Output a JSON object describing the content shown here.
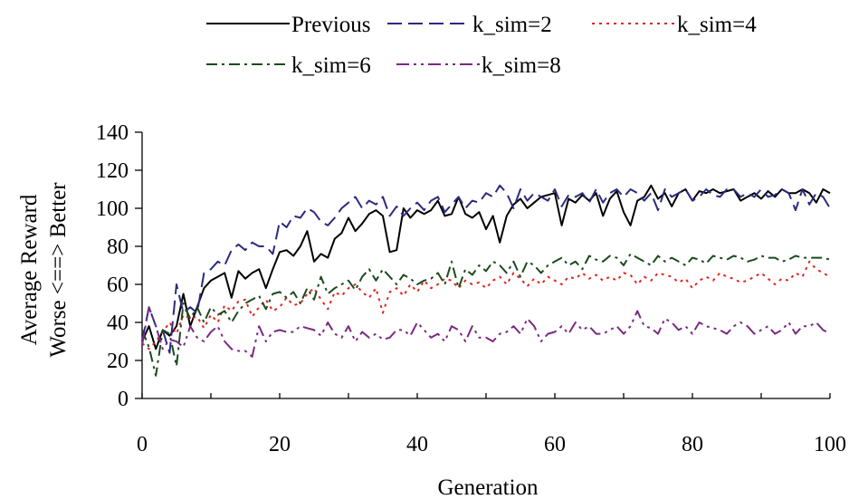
{
  "chart_data": {
    "type": "line",
    "title": "",
    "xlabel": "Generation",
    "ylabel": [
      "Average Reward",
      "Worse <==> Better"
    ],
    "xlim": [
      0,
      100
    ],
    "ylim": [
      0,
      140
    ],
    "xticks": [
      0,
      20,
      40,
      60,
      80,
      100
    ],
    "yticks": [
      0,
      20,
      40,
      60,
      80,
      100,
      120,
      140
    ],
    "grid": false,
    "legend_position": "top",
    "series": [
      {
        "name": "Previous",
        "color": "#000000",
        "dash": "solid",
        "x": [
          0,
          1,
          2,
          3,
          4,
          5,
          6,
          7,
          8,
          9,
          10,
          11,
          12,
          13,
          14,
          15,
          16,
          17,
          18,
          19,
          20,
          21,
          22,
          23,
          24,
          25,
          26,
          27,
          28,
          29,
          30,
          31,
          32,
          33,
          34,
          35,
          36,
          37,
          38,
          39,
          40,
          41,
          42,
          43,
          44,
          45,
          46,
          47,
          48,
          49,
          50,
          51,
          52,
          53,
          54,
          55,
          56,
          57,
          58,
          59,
          60,
          61,
          62,
          63,
          64,
          65,
          66,
          67,
          68,
          69,
          70,
          71,
          72,
          73,
          74,
          75,
          76,
          77,
          78,
          79,
          80,
          81,
          82,
          83,
          84,
          85,
          86,
          87,
          88,
          89,
          90,
          91,
          92,
          93,
          94,
          95,
          96,
          97,
          98,
          99,
          100
        ],
        "values": [
          30,
          38,
          26,
          36,
          33,
          38,
          55,
          38,
          48,
          58,
          62,
          64,
          66,
          53,
          67,
          63,
          66,
          68,
          58,
          68,
          77,
          78,
          75,
          80,
          88,
          72,
          76,
          74,
          84,
          87,
          95,
          88,
          92,
          97,
          99,
          96,
          77,
          78,
          100,
          95,
          99,
          97,
          99,
          104,
          96,
          97,
          106,
          97,
          95,
          98,
          89,
          96,
          82,
          96,
          102,
          105,
          100,
          103,
          106,
          107,
          108,
          91,
          105,
          103,
          107,
          104,
          108,
          96,
          105,
          109,
          98,
          91,
          104,
          106,
          112,
          105,
          108,
          101,
          108,
          110,
          104,
          109,
          108,
          110,
          108,
          109,
          110,
          104,
          106,
          108,
          105,
          109,
          106,
          110,
          108,
          108,
          110,
          108,
          103,
          110,
          108
        ]
      },
      {
        "name": "k_sim=2",
        "color": "#2b2b7f",
        "dash": "16,7",
        "x": [
          0,
          1,
          2,
          3,
          4,
          5,
          6,
          7,
          8,
          9,
          10,
          11,
          12,
          13,
          14,
          15,
          16,
          17,
          18,
          19,
          20,
          21,
          22,
          23,
          24,
          25,
          26,
          27,
          28,
          29,
          30,
          31,
          32,
          33,
          34,
          35,
          36,
          37,
          38,
          39,
          40,
          41,
          42,
          43,
          44,
          45,
          46,
          47,
          48,
          49,
          50,
          51,
          52,
          53,
          54,
          55,
          56,
          57,
          58,
          59,
          60,
          61,
          62,
          63,
          64,
          65,
          66,
          67,
          68,
          69,
          70,
          71,
          72,
          73,
          74,
          75,
          76,
          77,
          78,
          79,
          80,
          81,
          82,
          83,
          84,
          85,
          86,
          87,
          88,
          89,
          90,
          91,
          92,
          93,
          94,
          95,
          96,
          97,
          98,
          99,
          100
        ],
        "values": [
          30,
          48,
          38,
          36,
          24,
          60,
          45,
          48,
          45,
          66,
          68,
          72,
          70,
          78,
          81,
          78,
          82,
          80,
          80,
          76,
          93,
          90,
          96,
          95,
          100,
          98,
          93,
          91,
          95,
          100,
          103,
          106,
          100,
          104,
          102,
          106,
          96,
          101,
          96,
          100,
          103,
          99,
          104,
          106,
          98,
          102,
          106,
          100,
          104,
          103,
          108,
          106,
          112,
          108,
          100,
          110,
          104,
          108,
          106,
          104,
          110,
          101,
          107,
          106,
          108,
          103,
          110,
          103,
          108,
          110,
          106,
          110,
          108,
          104,
          108,
          99,
          110,
          106,
          108,
          110,
          104,
          106,
          110,
          107,
          106,
          110,
          110,
          106,
          108,
          106,
          110,
          106,
          107,
          110,
          108,
          99,
          110,
          102,
          108,
          106,
          100
        ]
      },
      {
        "name": "k_sim=4",
        "color": "#e0261e",
        "dash": "3,5",
        "x": [
          0,
          1,
          2,
          3,
          4,
          5,
          6,
          7,
          8,
          9,
          10,
          11,
          12,
          13,
          14,
          15,
          16,
          17,
          18,
          19,
          20,
          21,
          22,
          23,
          24,
          25,
          26,
          27,
          28,
          29,
          30,
          31,
          32,
          33,
          34,
          35,
          36,
          37,
          38,
          39,
          40,
          41,
          42,
          43,
          44,
          45,
          46,
          47,
          48,
          49,
          50,
          51,
          52,
          53,
          54,
          55,
          56,
          57,
          58,
          59,
          60,
          61,
          62,
          63,
          64,
          65,
          66,
          67,
          68,
          69,
          70,
          71,
          72,
          73,
          74,
          75,
          76,
          77,
          78,
          79,
          80,
          81,
          82,
          83,
          84,
          85,
          86,
          87,
          88,
          89,
          90,
          91,
          92,
          93,
          94,
          95,
          96,
          97,
          98,
          99,
          100
        ],
        "values": [
          29,
          26,
          30,
          35,
          40,
          34,
          44,
          42,
          43,
          37,
          44,
          40,
          49,
          46,
          51,
          52,
          43,
          48,
          52,
          46,
          48,
          53,
          49,
          50,
          55,
          58,
          52,
          47,
          56,
          54,
          58,
          60,
          56,
          53,
          58,
          45,
          56,
          58,
          54,
          60,
          56,
          62,
          58,
          60,
          63,
          62,
          58,
          62,
          60,
          61,
          58,
          62,
          64,
          60,
          66,
          63,
          59,
          63,
          60,
          64,
          62,
          60,
          64,
          63,
          66,
          63,
          65,
          62,
          64,
          62,
          66,
          65,
          60,
          64,
          62,
          66,
          65,
          64,
          61,
          63,
          58,
          62,
          64,
          62,
          66,
          64,
          63,
          61,
          62,
          64,
          66,
          63,
          60,
          63,
          62,
          66,
          64,
          72,
          68,
          66,
          64
        ]
      },
      {
        "name": "k_sim=6",
        "color": "#1d4a1d",
        "dash": "12,5,3,5",
        "x": [
          0,
          1,
          2,
          3,
          4,
          5,
          6,
          7,
          8,
          9,
          10,
          11,
          12,
          13,
          14,
          15,
          16,
          17,
          18,
          19,
          20,
          21,
          22,
          23,
          24,
          25,
          26,
          27,
          28,
          29,
          30,
          31,
          32,
          33,
          34,
          35,
          36,
          37,
          38,
          39,
          40,
          41,
          42,
          43,
          44,
          45,
          46,
          47,
          48,
          49,
          50,
          51,
          52,
          53,
          54,
          55,
          56,
          57,
          58,
          59,
          60,
          61,
          62,
          63,
          64,
          65,
          66,
          67,
          68,
          69,
          70,
          71,
          72,
          73,
          74,
          75,
          76,
          77,
          78,
          79,
          80,
          81,
          82,
          83,
          84,
          85,
          86,
          87,
          88,
          89,
          90,
          91,
          92,
          93,
          94,
          95,
          96,
          97,
          98,
          99,
          100
        ],
        "values": [
          36,
          27,
          12,
          36,
          34,
          17,
          50,
          42,
          48,
          40,
          48,
          44,
          46,
          40,
          46,
          50,
          52,
          54,
          47,
          55,
          56,
          53,
          56,
          50,
          58,
          52,
          64,
          55,
          58,
          60,
          62,
          57,
          64,
          68,
          62,
          68,
          64,
          60,
          65,
          63,
          60,
          62,
          63,
          66,
          60,
          72,
          58,
          68,
          65,
          70,
          67,
          72,
          70,
          66,
          72,
          64,
          72,
          70,
          66,
          70,
          72,
          74,
          70,
          72,
          68,
          75,
          73,
          72,
          75,
          74,
          70,
          76,
          74,
          72,
          70,
          75,
          72,
          74,
          72,
          70,
          74,
          73,
          71,
          75,
          74,
          73,
          75,
          74,
          72,
          73,
          75,
          74,
          74,
          72,
          73,
          75,
          74,
          74,
          74,
          74,
          73
        ]
      },
      {
        "name": "k_sim=8",
        "color": "#7a2a82",
        "dash": "14,5,3,5,3,5",
        "x": [
          0,
          1,
          2,
          3,
          4,
          5,
          6,
          7,
          8,
          9,
          10,
          11,
          12,
          13,
          14,
          15,
          16,
          17,
          18,
          19,
          20,
          21,
          22,
          23,
          24,
          25,
          26,
          27,
          28,
          29,
          30,
          31,
          32,
          33,
          34,
          35,
          36,
          37,
          38,
          39,
          40,
          41,
          42,
          43,
          44,
          45,
          46,
          47,
          48,
          49,
          50,
          51,
          52,
          53,
          54,
          55,
          56,
          57,
          58,
          59,
          60,
          61,
          62,
          63,
          64,
          65,
          66,
          67,
          68,
          69,
          70,
          71,
          72,
          73,
          74,
          75,
          76,
          77,
          78,
          79,
          80,
          81,
          82,
          83,
          84,
          85,
          86,
          87,
          88,
          89,
          90,
          91,
          92,
          93,
          94,
          95,
          96,
          97,
          98,
          99,
          100
        ],
        "values": [
          28,
          48,
          38,
          26,
          31,
          30,
          27,
          38,
          32,
          30,
          35,
          38,
          30,
          26,
          25,
          25,
          22,
          38,
          30,
          35,
          36,
          35,
          35,
          38,
          37,
          36,
          33,
          40,
          34,
          32,
          38,
          30,
          35,
          32,
          34,
          31,
          32,
          36,
          36,
          33,
          40,
          36,
          32,
          34,
          30,
          38,
          36,
          30,
          38,
          32,
          32,
          30,
          34,
          35,
          38,
          34,
          42,
          38,
          30,
          34,
          35,
          38,
          34,
          40,
          36,
          38,
          34,
          34,
          36,
          38,
          34,
          38,
          46,
          38,
          37,
          34,
          42,
          40,
          36,
          38,
          34,
          40,
          38,
          37,
          36,
          34,
          38,
          40,
          38,
          34,
          36,
          38,
          34,
          36,
          40,
          34,
          38,
          38,
          40,
          36,
          34
        ]
      }
    ]
  }
}
